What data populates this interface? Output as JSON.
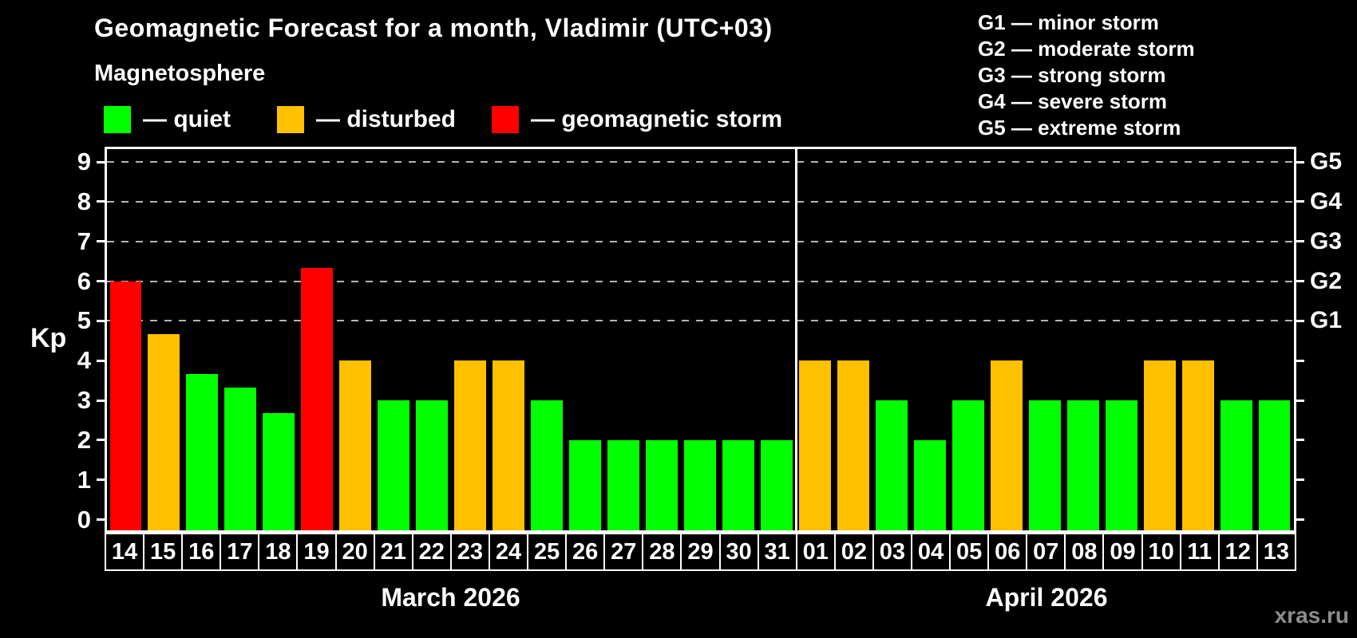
{
  "title": "Geomagnetic Forecast for a month, Vladimir (UTC+03)",
  "subtitle": "Magnetosphere",
  "legend": {
    "items": [
      {
        "name": "quiet",
        "label": "— quiet",
        "color": "#00ff00"
      },
      {
        "name": "disturbed",
        "label": "— disturbed",
        "color": "#ffc000"
      },
      {
        "name": "storm",
        "label": "— geomagnetic storm",
        "color": "#ff0000"
      }
    ]
  },
  "g_legend": [
    "G1 — minor storm",
    "G2 — moderate storm",
    "G3 — strong storm",
    "G4 — severe storm",
    "G5 — extreme storm"
  ],
  "watermark": "xras.ru",
  "chart_data": {
    "type": "bar",
    "title": "Geomagnetic Forecast for a month, Vladimir (UTC+03)",
    "ylabel": "Kp",
    "ylim": [
      0,
      9
    ],
    "y_ticks": [
      0,
      1,
      2,
      3,
      4,
      5,
      6,
      7,
      8,
      9
    ],
    "gridlines_at": [
      5,
      6,
      7,
      8,
      9
    ],
    "grid_style": "dashed",
    "legend_position": "top",
    "right_axis_labels": [
      {
        "value": 5,
        "label": "G1"
      },
      {
        "value": 6,
        "label": "G2"
      },
      {
        "value": 7,
        "label": "G3"
      },
      {
        "value": 8,
        "label": "G4"
      },
      {
        "value": 9,
        "label": "G5"
      }
    ],
    "state_colors": {
      "quiet": "#00ff00",
      "disturbed": "#ffc000",
      "storm": "#ff0000"
    },
    "months": [
      {
        "label": "March 2026",
        "days": [
          {
            "day": "14",
            "kp": 6.0,
            "state": "storm"
          },
          {
            "day": "15",
            "kp": 4.67,
            "state": "disturbed"
          },
          {
            "day": "16",
            "kp": 3.67,
            "state": "quiet"
          },
          {
            "day": "17",
            "kp": 3.33,
            "state": "quiet"
          },
          {
            "day": "18",
            "kp": 2.67,
            "state": "quiet"
          },
          {
            "day": "19",
            "kp": 6.33,
            "state": "storm"
          },
          {
            "day": "20",
            "kp": 4.0,
            "state": "disturbed"
          },
          {
            "day": "21",
            "kp": 3.0,
            "state": "quiet"
          },
          {
            "day": "22",
            "kp": 3.0,
            "state": "quiet"
          },
          {
            "day": "23",
            "kp": 4.0,
            "state": "disturbed"
          },
          {
            "day": "24",
            "kp": 4.0,
            "state": "disturbed"
          },
          {
            "day": "25",
            "kp": 3.0,
            "state": "quiet"
          },
          {
            "day": "26",
            "kp": 2.0,
            "state": "quiet"
          },
          {
            "day": "27",
            "kp": 2.0,
            "state": "quiet"
          },
          {
            "day": "28",
            "kp": 2.0,
            "state": "quiet"
          },
          {
            "day": "29",
            "kp": 2.0,
            "state": "quiet"
          },
          {
            "day": "30",
            "kp": 2.0,
            "state": "quiet"
          },
          {
            "day": "31",
            "kp": 2.0,
            "state": "quiet"
          }
        ]
      },
      {
        "label": "April 2026",
        "days": [
          {
            "day": "01",
            "kp": 4.0,
            "state": "disturbed"
          },
          {
            "day": "02",
            "kp": 4.0,
            "state": "disturbed"
          },
          {
            "day": "03",
            "kp": 3.0,
            "state": "quiet"
          },
          {
            "day": "04",
            "kp": 2.0,
            "state": "quiet"
          },
          {
            "day": "05",
            "kp": 3.0,
            "state": "quiet"
          },
          {
            "day": "06",
            "kp": 4.0,
            "state": "disturbed"
          },
          {
            "day": "07",
            "kp": 3.0,
            "state": "quiet"
          },
          {
            "day": "08",
            "kp": 3.0,
            "state": "quiet"
          },
          {
            "day": "09",
            "kp": 3.0,
            "state": "quiet"
          },
          {
            "day": "10",
            "kp": 4.0,
            "state": "disturbed"
          },
          {
            "day": "11",
            "kp": 4.0,
            "state": "disturbed"
          },
          {
            "day": "12",
            "kp": 3.0,
            "state": "quiet"
          },
          {
            "day": "13",
            "kp": 3.0,
            "state": "quiet"
          }
        ]
      }
    ]
  }
}
